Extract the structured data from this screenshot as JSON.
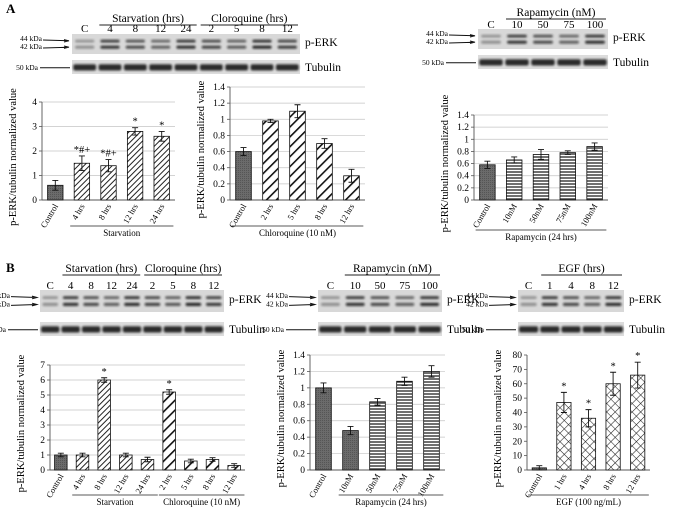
{
  "panel_labels": {
    "a": "A",
    "b": "B"
  },
  "blot_labels": {
    "perk": "p-ERK",
    "tubulin": "Tubulin",
    "kda44": "44 kDa",
    "kda42": "42 kDa",
    "kda50": "50 kDa"
  },
  "blots": {
    "a1": {
      "groups": [
        {
          "title": "Starvation (hrs)",
          "lanes": [
            "4",
            "8",
            "12",
            "24"
          ]
        },
        {
          "title": "Cloroquine (hrs)",
          "lanes": [
            "2",
            "5",
            "8",
            "12"
          ]
        }
      ],
      "control": "C"
    },
    "a2": {
      "groups": [
        {
          "title": "Rapamycin (nM)",
          "lanes": [
            "10",
            "50",
            "75",
            "100"
          ]
        }
      ],
      "control": "C"
    },
    "b1": {
      "groups": [
        {
          "title": "Starvation (hrs)",
          "lanes": [
            "4",
            "8",
            "12",
            "24"
          ]
        },
        {
          "title": "Cloroquine (hrs)",
          "lanes": [
            "2",
            "5",
            "8",
            "12"
          ]
        }
      ],
      "control": "C"
    },
    "b2": {
      "groups": [
        {
          "title": "Rapamycin (nM)",
          "lanes": [
            "10",
            "50",
            "75",
            "100"
          ]
        }
      ],
      "control": "C"
    },
    "b3": {
      "groups": [
        {
          "title": "EGF (hrs)",
          "lanes": [
            "1",
            "4",
            "8",
            "12"
          ]
        }
      ],
      "control": "C"
    }
  },
  "chart_data": [
    {
      "id": "A1",
      "type": "bar",
      "ylabel": "p-ERK/tubulin normalized value",
      "ylim": [
        0,
        4
      ],
      "yticks": [
        0,
        1,
        2,
        3,
        4
      ],
      "grid": true,
      "categories": [
        "Control",
        "4 hrs",
        "8 hrs",
        "12 hrs",
        "24 hrs"
      ],
      "values": [
        0.6,
        1.5,
        1.4,
        2.8,
        2.6
      ],
      "errors": [
        0.2,
        0.3,
        0.25,
        0.15,
        0.2
      ],
      "patterns": [
        "solid",
        "stripe-fine",
        "stripe-fine",
        "stripe-fine",
        "stripe-fine"
      ],
      "annotations": [
        "",
        "*#+",
        "*#+",
        "*",
        "*"
      ],
      "group_labels": [
        {
          "text": "Starvation",
          "from": 1,
          "to": 4
        }
      ]
    },
    {
      "id": "A2",
      "type": "bar",
      "ylabel": "p-ERK/tubulin normalized value",
      "ylim": [
        0,
        1.4
      ],
      "yticks": [
        0,
        0.2,
        0.4,
        0.6,
        0.8,
        1,
        1.2,
        1.4
      ],
      "grid": true,
      "categories": [
        "Control",
        "2 hrs",
        "5 hrs",
        "8 hrs",
        "12 hrs"
      ],
      "values": [
        0.6,
        0.98,
        1.1,
        0.7,
        0.3
      ],
      "errors": [
        0.05,
        0.02,
        0.08,
        0.06,
        0.08
      ],
      "patterns": [
        "solid",
        "stripe-bold",
        "stripe-bold",
        "stripe-bold",
        "stripe-bold"
      ],
      "annotations": [
        "",
        "",
        "",
        "",
        ""
      ],
      "group_labels": [
        {
          "text": "Chloroquine (10 nM)",
          "from": 0,
          "to": 4
        }
      ]
    },
    {
      "id": "A3",
      "type": "bar",
      "ylabel": "p-ERK/tubulin normalized value",
      "ylim": [
        0,
        1.4
      ],
      "yticks": [
        0,
        0.2,
        0.4,
        0.6,
        0.8,
        1,
        1.2,
        1.4
      ],
      "grid": true,
      "categories": [
        "Control",
        "10nM",
        "50nM",
        "75nM",
        "100nM"
      ],
      "values": [
        0.58,
        0.66,
        0.75,
        0.78,
        0.88
      ],
      "errors": [
        0.06,
        0.05,
        0.08,
        0.03,
        0.06
      ],
      "patterns": [
        "solid",
        "hline",
        "hline",
        "hline",
        "hline"
      ],
      "annotations": [
        "",
        "",
        "",
        "",
        ""
      ],
      "group_labels": [
        {
          "text": "Rapamycin (24 hrs)",
          "from": 0,
          "to": 4
        }
      ]
    },
    {
      "id": "B1",
      "type": "bar",
      "ylabel": "p-ERK/tubulin normalized value",
      "ylim": [
        0,
        7
      ],
      "yticks": [
        0,
        1,
        2,
        3,
        4,
        5,
        6,
        7
      ],
      "grid": true,
      "categories": [
        "Control",
        "4 hrs",
        "8 hrs",
        "12 hrs",
        "24 hrs",
        "2 hrs",
        "5 hrs",
        "8 hrs",
        "12 hrs"
      ],
      "values": [
        1.0,
        1.0,
        6.0,
        1.0,
        0.7,
        5.2,
        0.6,
        0.7,
        0.3
      ],
      "errors": [
        0.12,
        0.12,
        0.15,
        0.12,
        0.15,
        0.15,
        0.12,
        0.12,
        0.12
      ],
      "patterns": [
        "solid",
        "stripe-fine",
        "stripe-fine",
        "stripe-fine",
        "stripe-fine",
        "stripe-bold",
        "stripe-bold",
        "stripe-bold",
        "stripe-bold"
      ],
      "annotations": [
        "",
        "",
        "*",
        "",
        "",
        "*",
        "",
        "",
        ""
      ],
      "group_labels": [
        {
          "text": "Starvation",
          "from": 1,
          "to": 4
        },
        {
          "text": "Chloroquine (10 nM)",
          "from": 5,
          "to": 8
        }
      ]
    },
    {
      "id": "B2",
      "type": "bar",
      "ylabel": "p-ERK/tubulin normalized value",
      "ylim": [
        0,
        1.4
      ],
      "yticks": [
        0,
        0.2,
        0.4,
        0.6,
        0.8,
        1,
        1.2,
        1.4
      ],
      "grid": true,
      "categories": [
        "Control",
        "10nM",
        "50nM",
        "75nM",
        "100nM"
      ],
      "values": [
        1.0,
        0.48,
        0.83,
        1.08,
        1.2
      ],
      "errors": [
        0.06,
        0.05,
        0.04,
        0.05,
        0.07
      ],
      "patterns": [
        "solid",
        "solid",
        "hline",
        "hline",
        "hline"
      ],
      "annotations": [
        "",
        "",
        "",
        "",
        ""
      ],
      "group_labels": [
        {
          "text": "Rapamycin (24 hrs)",
          "from": 1,
          "to": 4
        }
      ]
    },
    {
      "id": "B3",
      "type": "bar",
      "ylabel": "p-ERK/tubulin normalized value",
      "ylim": [
        0,
        80
      ],
      "yticks": [
        0,
        10,
        20,
        30,
        40,
        50,
        60,
        70,
        80
      ],
      "grid": false,
      "categories": [
        "Control",
        "1 hrs",
        "4 hrs",
        "8 hrs",
        "12 hrs"
      ],
      "values": [
        1.5,
        47,
        36,
        60,
        66
      ],
      "errors": [
        1.5,
        7,
        6,
        8,
        9
      ],
      "patterns": [
        "solid",
        "cross",
        "cross",
        "cross",
        "cross"
      ],
      "annotations": [
        "",
        "*",
        "*",
        "*",
        "*"
      ],
      "group_labels": [
        {
          "text": "EGF (100 ng/mL)",
          "from": 0,
          "to": 4
        }
      ]
    }
  ]
}
